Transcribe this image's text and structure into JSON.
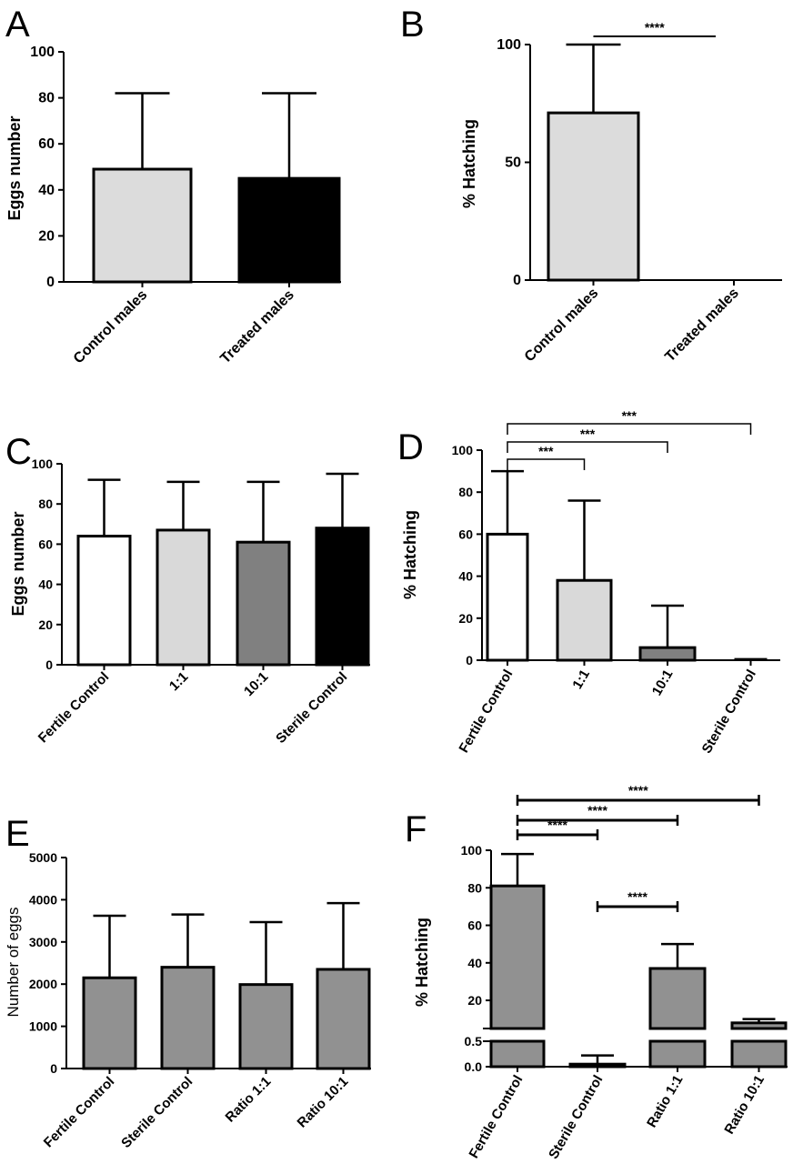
{
  "chart_data": [
    {
      "panel": "A",
      "type": "bar",
      "ylabel": "Eggs number",
      "ylim": [
        0,
        100
      ],
      "yticks": [
        "0",
        "20",
        "40",
        "60",
        "80",
        "100"
      ],
      "categories": [
        "Control males",
        "Treated males"
      ],
      "values": [
        49,
        45
      ],
      "errors_upper": [
        82,
        82
      ],
      "colors": [
        "#dcdcdc",
        "#000000"
      ],
      "significance": []
    },
    {
      "panel": "B",
      "type": "bar",
      "ylabel": "% Hatching",
      "ylim": [
        0,
        100
      ],
      "yticks": [
        "0",
        "50",
        "100"
      ],
      "categories": [
        "Control males",
        "Treated males"
      ],
      "values": [
        71,
        0
      ],
      "errors_upper": [
        100,
        0
      ],
      "colors": [
        "#dcdcdc",
        "#000000"
      ],
      "significance": [
        {
          "from": 0,
          "to": 1,
          "label": "****"
        }
      ]
    },
    {
      "panel": "C",
      "type": "bar",
      "ylabel": "Eggs number",
      "ylim": [
        0,
        100
      ],
      "yticks": [
        "0",
        "20",
        "40",
        "60",
        "80",
        "100"
      ],
      "categories": [
        "Fertile Control",
        "1:1",
        "10:1",
        "Sterile Control"
      ],
      "values": [
        64,
        67,
        61,
        68
      ],
      "errors_upper": [
        92,
        91,
        91,
        95
      ],
      "colors": [
        "#ffffff",
        "#d9d9d9",
        "#808080",
        "#000000"
      ],
      "significance": []
    },
    {
      "panel": "D",
      "type": "bar",
      "ylabel": "% Hatching",
      "ylim": [
        0,
        100
      ],
      "yticks": [
        "0",
        "20",
        "40",
        "60",
        "80",
        "100"
      ],
      "categories": [
        "Fertile Control",
        "1:1",
        "10:1",
        "Sterile Control"
      ],
      "values": [
        60,
        38,
        6,
        0
      ],
      "errors_upper": [
        90,
        76,
        26,
        0.5
      ],
      "colors": [
        "#ffffff",
        "#d9d9d9",
        "#808080",
        "#000000"
      ],
      "significance": [
        {
          "from": 0,
          "to": 1,
          "label": "***"
        },
        {
          "from": 0,
          "to": 2,
          "label": "***"
        },
        {
          "from": 0,
          "to": 3,
          "label": "***"
        }
      ]
    },
    {
      "panel": "E",
      "type": "bar",
      "ylabel": "Number of eggs",
      "ylim": [
        0,
        5000
      ],
      "yticks": [
        "0",
        "1000",
        "2000",
        "3000",
        "4000",
        "5000"
      ],
      "categories": [
        "Fertile Control",
        "Sterile Control",
        "Ratio 1:1",
        "Ratio 10:1"
      ],
      "values": [
        2150,
        2400,
        1990,
        2350
      ],
      "errors_upper": [
        3620,
        3650,
        3470,
        3920
      ],
      "colors": [
        "#919191",
        "#919191",
        "#919191",
        "#919191"
      ],
      "significance": []
    },
    {
      "panel": "F",
      "type": "bar",
      "ylabel": "% Hatching",
      "ylim": [
        0,
        100
      ],
      "axis_break": [
        0.5,
        5
      ],
      "yticks": [
        "0.0",
        "0.5",
        "20",
        "40",
        "60",
        "80",
        "100"
      ],
      "categories": [
        "Fertile Control",
        "Sterile Control",
        "Ratio 1:1",
        "Ratio 10:1"
      ],
      "values": [
        81,
        0.05,
        37,
        8
      ],
      "errors_upper": [
        98,
        0.22,
        50,
        10
      ],
      "colors": [
        "#919191",
        "#919191",
        "#919191",
        "#919191"
      ],
      "significance": [
        {
          "from": 0,
          "to": 1,
          "label": "****"
        },
        {
          "from": 0,
          "to": 2,
          "label": "****"
        },
        {
          "from": 0,
          "to": 3,
          "label": "****"
        },
        {
          "from": 1,
          "to": 2,
          "label": "****"
        }
      ]
    }
  ]
}
